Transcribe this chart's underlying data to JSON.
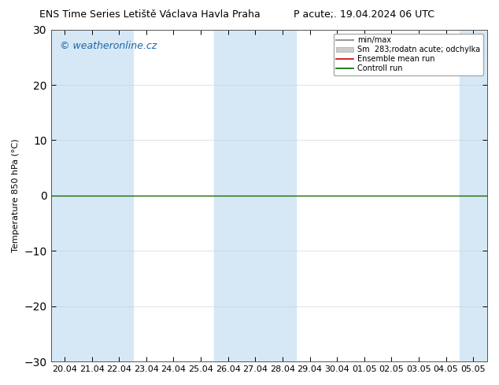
{
  "title": "ENS Time Series Letiště Václava Havla Praha",
  "title_right": "P acute;. 19.04.2024 06 UTC",
  "ylabel": "Temperature 850 hPa (°C)",
  "ylim": [
    -30,
    30
  ],
  "yticks": [
    -30,
    -20,
    -10,
    0,
    10,
    20,
    30
  ],
  "xlabels": [
    "20.04",
    "21.04",
    "22.04",
    "23.04",
    "24.04",
    "25.04",
    "26.04",
    "27.04",
    "28.04",
    "29.04",
    "30.04",
    "01.05",
    "02.05",
    "03.05",
    "04.05",
    "05.05"
  ],
  "watermark": "© weatheronline.cz",
  "legend_entries": [
    "min/max",
    "Sm  283;rodatn acute; odchylka",
    "Ensemble mean run",
    "Controll run"
  ],
  "shaded_columns": [
    0,
    1,
    2,
    6,
    7,
    8,
    15
  ],
  "shaded_color": "#d6e8f5",
  "background_color": "#ffffff",
  "plot_bg_color": "#ffffff",
  "zero_line_color": "#1a6600",
  "ensemble_mean_color": "#cc0000",
  "control_run_color": "#006600",
  "minmax_color": "#999999",
  "spread_color": "#cccccc",
  "title_fontsize": 9,
  "axis_fontsize": 8,
  "tick_fontsize": 8,
  "watermark_color": "#1a66aa",
  "watermark_fontsize": 9,
  "n_cols": 16
}
